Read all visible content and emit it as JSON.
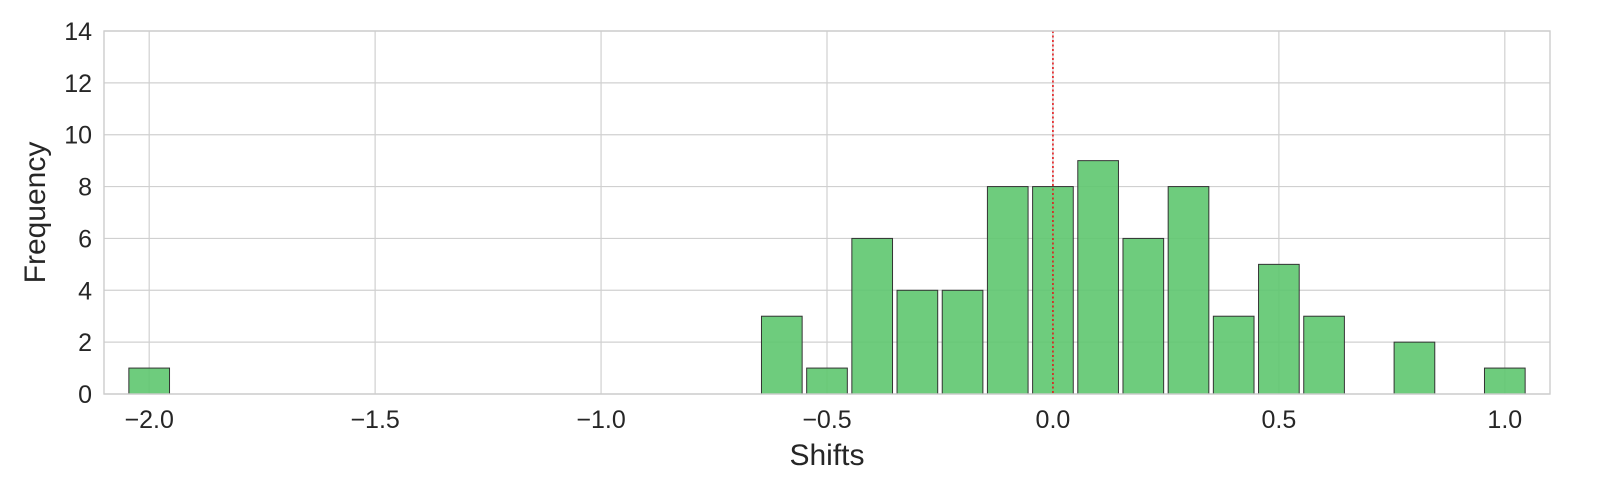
{
  "chart_data": {
    "type": "bar",
    "title": "",
    "xlabel": "Shifts",
    "ylabel": "Frequency",
    "xlim": [
      -2.1,
      1.1
    ],
    "ylim": [
      0,
      14
    ],
    "bin_width": 0.1,
    "bar_width_fraction": 0.9,
    "bins": [
      {
        "center": -2.0,
        "count": 1
      },
      {
        "center": -0.6,
        "count": 3
      },
      {
        "center": -0.5,
        "count": 1
      },
      {
        "center": -0.4,
        "count": 6
      },
      {
        "center": -0.3,
        "count": 4
      },
      {
        "center": -0.2,
        "count": 4
      },
      {
        "center": -0.1,
        "count": 8
      },
      {
        "center": 0.0,
        "count": 8
      },
      {
        "center": 0.1,
        "count": 9
      },
      {
        "center": 0.2,
        "count": 6
      },
      {
        "center": 0.3,
        "count": 8
      },
      {
        "center": 0.4,
        "count": 3
      },
      {
        "center": 0.5,
        "count": 5
      },
      {
        "center": 0.6,
        "count": 3
      },
      {
        "center": 0.8,
        "count": 2
      },
      {
        "center": 1.0,
        "count": 1
      }
    ],
    "x_ticks": [
      {
        "value": -2.0,
        "label": "−2.0"
      },
      {
        "value": -1.5,
        "label": "−1.5"
      },
      {
        "value": -1.0,
        "label": "−1.0"
      },
      {
        "value": -0.5,
        "label": "−0.5"
      },
      {
        "value": 0.0,
        "label": "0.0"
      },
      {
        "value": 0.5,
        "label": "0.5"
      },
      {
        "value": 1.0,
        "label": "1.0"
      }
    ],
    "y_ticks": [
      {
        "value": 0,
        "label": "0"
      },
      {
        "value": 2,
        "label": "2"
      },
      {
        "value": 4,
        "label": "4"
      },
      {
        "value": 6,
        "label": "6"
      },
      {
        "value": 8,
        "label": "8"
      },
      {
        "value": 10,
        "label": "10"
      },
      {
        "value": 12,
        "label": "12"
      },
      {
        "value": 14,
        "label": "14"
      }
    ],
    "reference_line": {
      "x": 0.0,
      "style": "dotted",
      "color": "#e31a1c"
    },
    "grid": true,
    "legend": "none",
    "colors": {
      "bar_fill": "#5ec66f",
      "bar_edge": "#333333",
      "grid": "#d0d0d0",
      "axis_frame": "#cccccc",
      "text": "#262626"
    }
  }
}
